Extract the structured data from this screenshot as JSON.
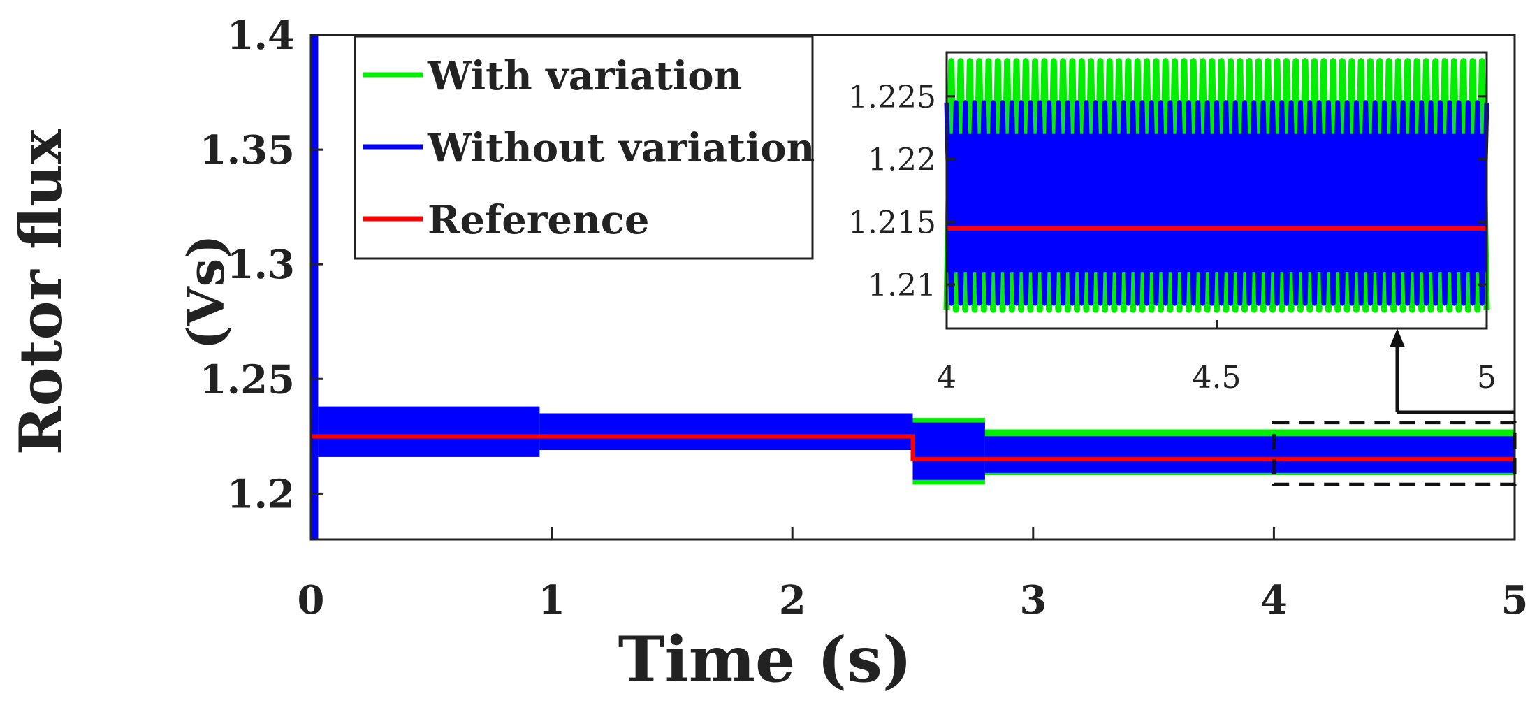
{
  "chart_data": {
    "type": "line",
    "title": "",
    "xlabel": "Time (s)",
    "ylabel_line1": "Rotor flux",
    "ylabel_line2": "(Vs)",
    "xlim": [
      0,
      5
    ],
    "ylim": [
      1.18,
      1.4
    ],
    "xticks": [
      0,
      1,
      2,
      3,
      4,
      5
    ],
    "yticks": [
      1.2,
      1.25,
      1.3,
      1.35,
      1.4
    ],
    "xtick_labels": [
      "0",
      "1",
      "2",
      "3",
      "4",
      "5"
    ],
    "ytick_labels": [
      "1.2",
      "1.25",
      "1.3",
      "1.35",
      "1.4"
    ],
    "grid": false,
    "legend_position": "top-left",
    "series": [
      {
        "name": "With variation",
        "color": "#00ee00",
        "segments": [
          {
            "t_start": 0.0,
            "t_end": 0.03,
            "low": 1.18,
            "high": 1.4
          },
          {
            "t_start": 0.03,
            "t_end": 0.95,
            "low": 1.216,
            "high": 1.238
          },
          {
            "t_start": 0.95,
            "t_end": 2.5,
            "low": 1.219,
            "high": 1.235
          },
          {
            "t_start": 2.5,
            "t_end": 2.8,
            "low": 1.204,
            "high": 1.233
          },
          {
            "t_start": 2.8,
            "t_end": 5.0,
            "low": 1.208,
            "high": 1.228
          }
        ]
      },
      {
        "name": "Without variation",
        "color": "#0000ff",
        "segments": [
          {
            "t_start": 0.0,
            "t_end": 0.03,
            "low": 1.18,
            "high": 1.4
          },
          {
            "t_start": 0.03,
            "t_end": 0.95,
            "low": 1.216,
            "high": 1.238
          },
          {
            "t_start": 0.95,
            "t_end": 2.5,
            "low": 1.219,
            "high": 1.235
          },
          {
            "t_start": 2.5,
            "t_end": 2.8,
            "low": 1.206,
            "high": 1.231
          },
          {
            "t_start": 2.8,
            "t_end": 5.0,
            "low": 1.209,
            "high": 1.225
          }
        ]
      },
      {
        "name": "Reference",
        "color": "#ff0000",
        "points": [
          [
            0.0,
            1.225
          ],
          [
            2.5,
            1.225
          ],
          [
            2.5,
            1.215
          ],
          [
            5.0,
            1.215
          ]
        ]
      }
    ],
    "inset": {
      "xlim": [
        4,
        5
      ],
      "ylim": [
        1.2065,
        1.2285
      ],
      "xticks": [
        4,
        4.5,
        5
      ],
      "yticks": [
        1.21,
        1.215,
        1.22,
        1.225
      ],
      "xtick_labels": [
        "4",
        "4.5",
        "5"
      ],
      "ytick_labels": [
        "1.21",
        "1.215",
        "1.22",
        "1.225"
      ],
      "oscillation_periods": 58,
      "with_variation": {
        "min": 1.208,
        "max": 1.2278
      },
      "without_variation": {
        "min": 1.2085,
        "max": 1.2245
      },
      "reference": 1.2145,
      "zoom_region": {
        "x_range": [
          4,
          5
        ],
        "y_range": [
          1.204,
          1.231
        ]
      }
    }
  }
}
